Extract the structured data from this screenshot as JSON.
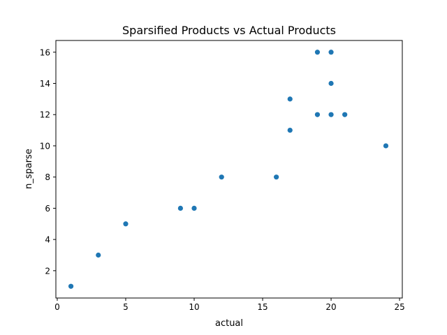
{
  "chart_data": {
    "type": "scatter",
    "title": "Sparsified Products vs Actual Products",
    "xlabel": "actual",
    "ylabel": "n_sparse",
    "xlim": [
      -0.1,
      25.2
    ],
    "ylim": [
      0.25,
      16.75
    ],
    "xticks": [
      0,
      5,
      10,
      15,
      20,
      25
    ],
    "yticks": [
      2,
      4,
      6,
      8,
      10,
      12,
      14,
      16
    ],
    "grid": false,
    "legend": "none",
    "color": "#1f77b4",
    "points": [
      {
        "x": 1,
        "y": 1
      },
      {
        "x": 3,
        "y": 3
      },
      {
        "x": 5,
        "y": 5
      },
      {
        "x": 9,
        "y": 6
      },
      {
        "x": 10,
        "y": 6
      },
      {
        "x": 12,
        "y": 8
      },
      {
        "x": 16,
        "y": 8
      },
      {
        "x": 17,
        "y": 11
      },
      {
        "x": 17,
        "y": 13
      },
      {
        "x": 19,
        "y": 12
      },
      {
        "x": 19,
        "y": 16
      },
      {
        "x": 20,
        "y": 12
      },
      {
        "x": 20,
        "y": 14
      },
      {
        "x": 20,
        "y": 16
      },
      {
        "x": 21,
        "y": 12
      },
      {
        "x": 24,
        "y": 10
      }
    ]
  }
}
